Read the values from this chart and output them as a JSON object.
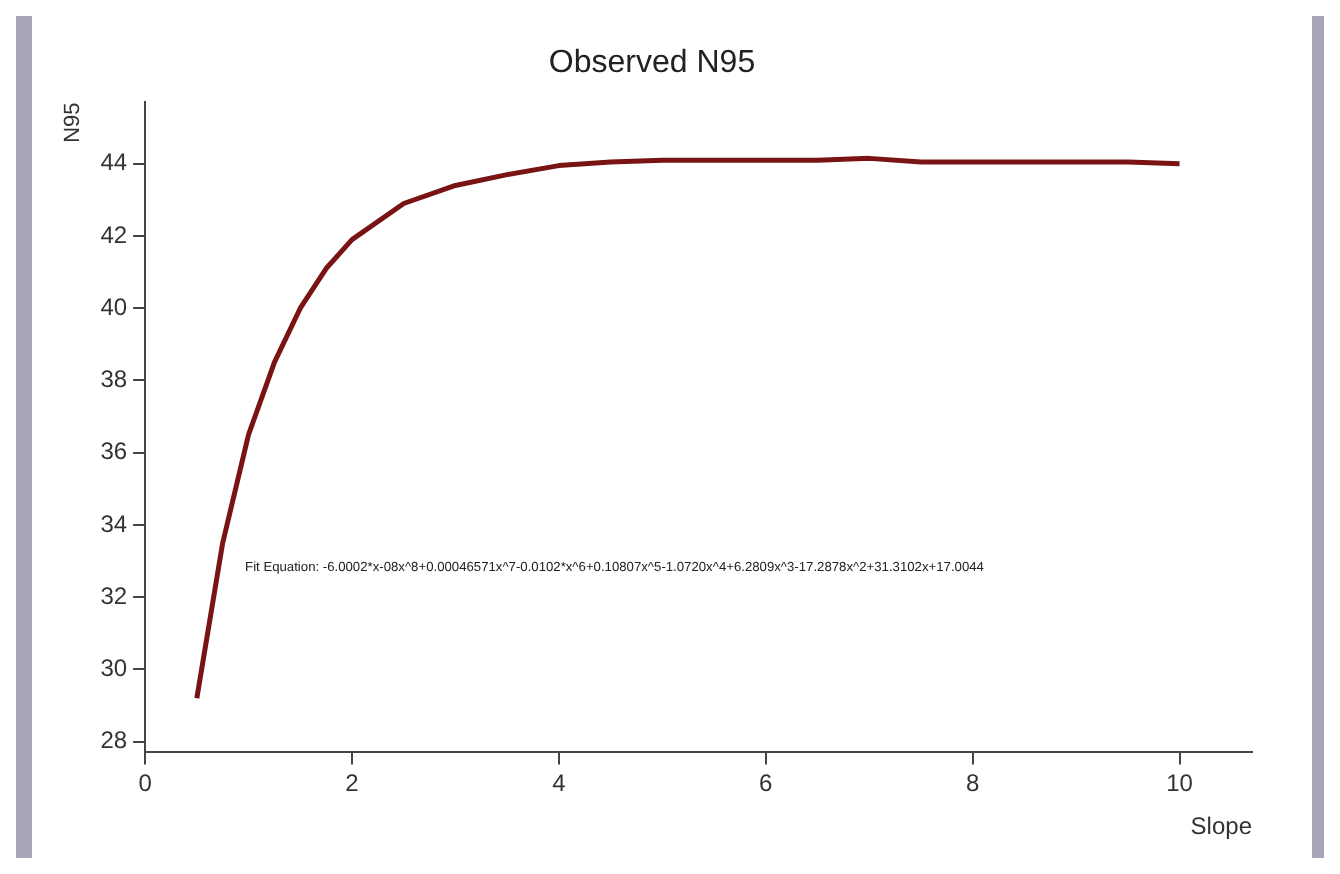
{
  "chart_data": {
    "type": "line",
    "title": "Observed N95",
    "xlabel": "Slope",
    "ylabel": "N95",
    "x": [
      0.5,
      0.75,
      1.0,
      1.25,
      1.5,
      1.75,
      2.0,
      2.5,
      3.0,
      3.5,
      4.0,
      4.5,
      5.0,
      5.5,
      6.0,
      6.5,
      7.0,
      7.5,
      8.0,
      8.5,
      9.0,
      9.5,
      10.0
    ],
    "series": [
      {
        "color": "#7a1414",
        "values": [
          29.2,
          33.5,
          36.5,
          38.5,
          40.0,
          41.1,
          41.9,
          42.9,
          43.4,
          43.7,
          43.95,
          44.05,
          44.1,
          44.1,
          44.1,
          44.1,
          44.15,
          44.05,
          44.05,
          44.05,
          44.05,
          44.05,
          44.0
        ]
      }
    ],
    "annotations": [
      "Fit Equation: -6.0002*x-08x^8+0.00046571x^7-0.0102*x^6+0.10807x^5-1.0720x^4+6.2809x^3-17.2878x^2+31.3102x+17.0044"
    ],
    "xlim": [
      0,
      10.7
    ],
    "xticks": [
      0,
      2,
      4,
      6,
      8,
      10
    ],
    "ylim": [
      27.7,
      45.7
    ],
    "yticks": [
      28,
      30,
      32,
      34,
      36,
      38,
      40,
      42,
      44
    ],
    "grid": false,
    "legend": false,
    "marker": "none",
    "line_style": "solid"
  }
}
